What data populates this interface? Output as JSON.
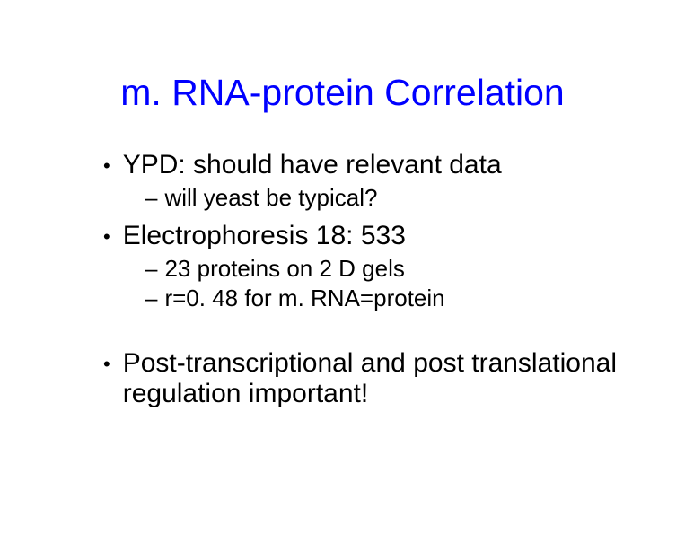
{
  "slide": {
    "title": "m. RNA-protein Correlation",
    "title_color": "#0000ff",
    "title_fontsize": 41,
    "body_color": "#000000",
    "body_fontsize_l1": 30,
    "body_fontsize_l2": 26,
    "background_color": "#ffffff",
    "bullets": [
      {
        "level": 1,
        "text": "YPD:  should have relevant data"
      },
      {
        "level": 2,
        "text": "will yeast be typical?"
      },
      {
        "level": 1,
        "text": "Electrophoresis 18: 533"
      },
      {
        "level": 2,
        "text": "23 proteins on 2 D gels"
      },
      {
        "level": 2,
        "text": "r=0. 48 for m. RNA=protein"
      },
      {
        "level": 1,
        "text": "Post-transcriptional and post translational regulation important!"
      }
    ]
  }
}
